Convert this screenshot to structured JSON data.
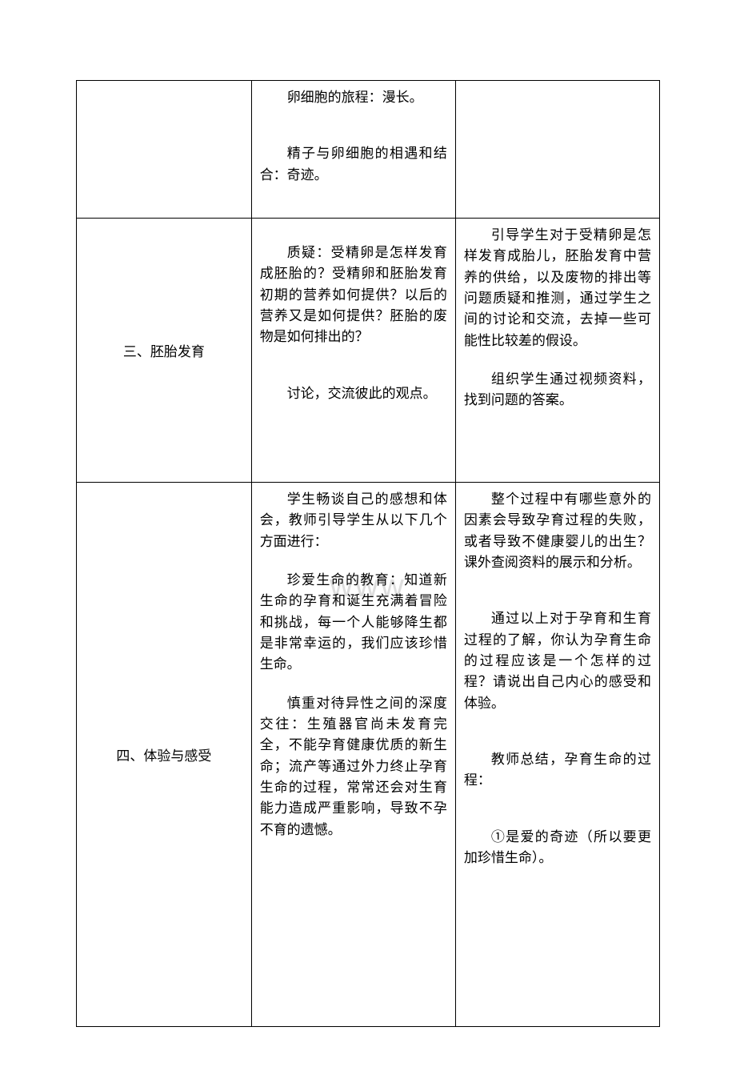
{
  "watermark": "www",
  "table": {
    "colWidths": [
      "30%",
      "35%",
      "35%"
    ],
    "borderColor": "#000000",
    "backgroundColor": "#ffffff",
    "textColor": "#000000",
    "fontSize": 17,
    "fontFamily": "SimSun",
    "rows": [
      {
        "col1": "",
        "col2": [
          "卵细胞的旅程：漫长。",
          "",
          "精子与卵细胞的相遇和结合：奇迹。"
        ],
        "col3": [
          ""
        ]
      },
      {
        "col1": "三、胚胎发育",
        "col2": [
          "质疑：受精卵是怎样发育成胚胎的？受精卵和胚胎发育初期的营养如何提供？以后的营养又是如何提供？胚胎的废物是如何排出的？",
          "",
          "讨论，交流彼此的观点。"
        ],
        "col3": [
          "引导学生对于受精卵是怎样发育成胎儿，胚胎发育中营养的供给，以及废物的排出等问题质疑和推测，通过学生之间的讨论和交流，去掉一些可能性比较差的假设。",
          "",
          "组织学生通过视频资料，找到问题的答案。"
        ]
      },
      {
        "col1": "四、体验与感受",
        "col2": [
          "学生畅谈自己的感想和体会，教师引导学生从以下几个方面进行：",
          "",
          "珍爱生命的教育：知道新生命的孕育和诞生充满着冒险和挑战，每一个人能够降生都是非常幸运的，我们应该珍惜生命。",
          "",
          "慎重对待异性之间的深度交往：生殖器官尚未发育完全，不能孕育健康优质的新生命；流产等通过外力终止孕育生命的过程，常常还会对生育能力造成严重影响，导致不孕不育的遗憾。"
        ],
        "col3": [
          "整个过程中有哪些意外的因素会导致孕育过程的失败，或者导致不健康婴儿的出生？课外查阅资料的展示和分析。",
          "",
          "通过以上对于孕育和生育过程的了解，你认为孕育生命的过程应该是一个怎样的过程？请说出自己内心的感受和体验。",
          "",
          "教师总结，孕育生命的过程：",
          "",
          "①是爱的奇迹（所以要更加珍惜生命）。"
        ]
      }
    ]
  }
}
